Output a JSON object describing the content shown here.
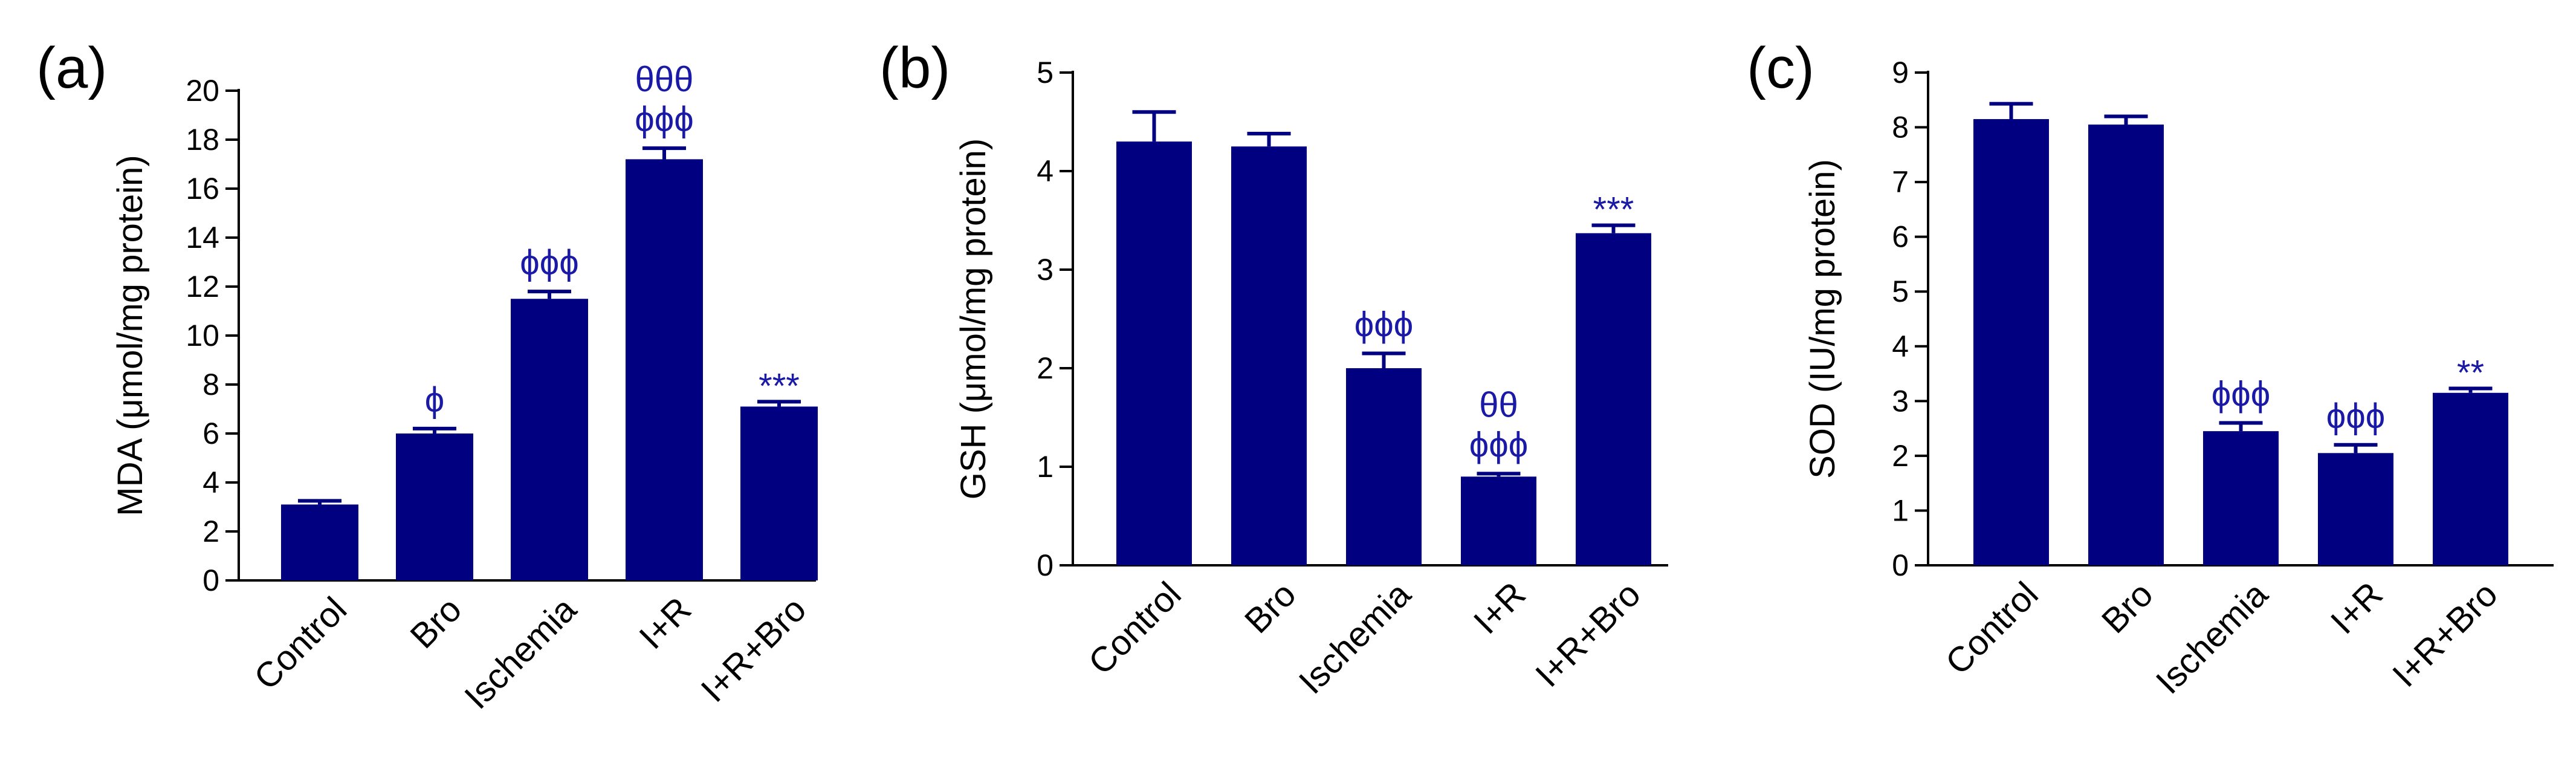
{
  "figure": {
    "bar_color": "#000080",
    "annotation_color": "#1a1aa6",
    "axis_color": "#000000"
  },
  "chart_data": [
    {
      "type": "bar",
      "panel_label": "(a)",
      "ylabel": "MDA (μmol/mg protein)",
      "categories": [
        "Control",
        "Bro",
        "Ischemia",
        "I+R",
        "I+R+Bro"
      ],
      "values": [
        3.1,
        6.0,
        11.5,
        17.2,
        7.1
      ],
      "errors": [
        0.15,
        0.2,
        0.3,
        0.45,
        0.2
      ],
      "ylim": [
        0,
        20
      ],
      "yticks": [
        0,
        2,
        4,
        6,
        8,
        10,
        12,
        14,
        16,
        18,
        20
      ],
      "annotations": [
        [],
        [
          "ϕ"
        ],
        [
          "ϕϕϕ"
        ],
        [
          "θθθ",
          "ϕϕϕ"
        ],
        [
          "***"
        ]
      ]
    },
    {
      "type": "bar",
      "panel_label": "(b)",
      "ylabel": "GSH (μmol/mg protein)",
      "categories": [
        "Control",
        "Bro",
        "Ischemia",
        "I+R",
        "I+R+Bro"
      ],
      "values": [
        4.3,
        4.25,
        2.0,
        0.9,
        3.37
      ],
      "errors": [
        0.3,
        0.13,
        0.15,
        0.03,
        0.08
      ],
      "ylim": [
        0,
        5
      ],
      "yticks": [
        0,
        1,
        2,
        3,
        4,
        5
      ],
      "annotations": [
        [],
        [],
        [
          "ϕϕϕ"
        ],
        [
          "θθ",
          "ϕϕϕ"
        ],
        [
          "***"
        ]
      ]
    },
    {
      "type": "bar",
      "panel_label": "(c)",
      "ylabel": "SOD (IU/mg protein)",
      "categories": [
        "Control",
        "Bro",
        "Ischemia",
        "I+R",
        "I+R+Bro"
      ],
      "values": [
        8.15,
        8.05,
        2.45,
        2.05,
        3.15
      ],
      "errors": [
        0.28,
        0.15,
        0.15,
        0.15,
        0.08
      ],
      "ylim": [
        0,
        9
      ],
      "yticks": [
        0,
        1,
        2,
        3,
        4,
        5,
        6,
        7,
        8,
        9
      ],
      "annotations": [
        [],
        [],
        [
          "ϕϕϕ"
        ],
        [
          "ϕϕϕ"
        ],
        [
          "**"
        ]
      ]
    }
  ]
}
